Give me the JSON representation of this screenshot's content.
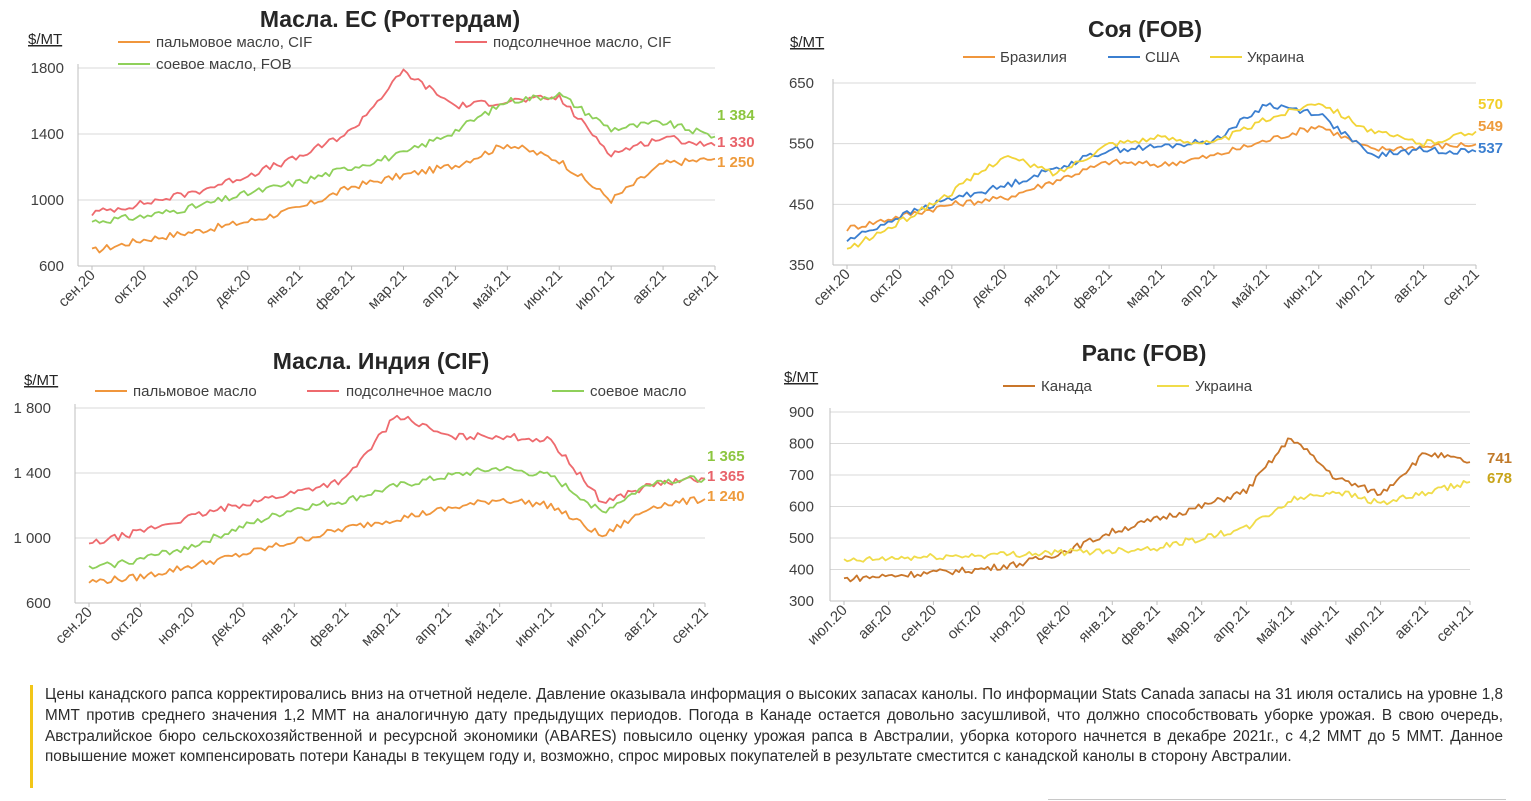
{
  "colors": {
    "orange": "#f0963c",
    "red": "#ee6a6e",
    "green": "#8fd05a",
    "blue": "#3b7fd0",
    "yellow": "#f2d438",
    "canola": "#c9762a",
    "canola_ua": "#f0dc4a",
    "end_green": "#8cc63f",
    "end_red": "#e8636a",
    "end_orange": "#ee9b3c",
    "end_blue": "#3b7fd0",
    "end_yellow": "#f2cf2a",
    "end_canola": "#c07a2a",
    "end_canola_ua": "#c8a41a",
    "grid": "#d9d9d9",
    "axis": "#bfbfbf",
    "note_border": "#f2c618"
  },
  "chart_data": [
    {
      "id": "eu-oils",
      "type": "line",
      "title": "Масла. ЕС (Роттердам)",
      "unit": "$/МТ",
      "ylim": [
        600,
        1800
      ],
      "yticks": [
        "600",
        "1000",
        "1400",
        "1800"
      ],
      "categories": [
        "сен.20",
        "окт.20",
        "ноя.20",
        "дек.20",
        "янв.21",
        "фев.21",
        "мар.21",
        "апр.21",
        "май.21",
        "июн.21",
        "июл.21",
        "авг.21",
        "сен.21"
      ],
      "grid": true,
      "legend": "top",
      "series": [
        {
          "name": "пальмовое масло, CIF",
          "color_key": "orange",
          "values": [
            690,
            760,
            810,
            870,
            950,
            1080,
            1150,
            1210,
            1340,
            1240,
            1000,
            1220,
            1250
          ],
          "end_label": "1 250"
        },
        {
          "name": "подсолнечное масло, CIF",
          "color_key": "red",
          "values": [
            920,
            980,
            1050,
            1150,
            1260,
            1420,
            1780,
            1570,
            1600,
            1620,
            1280,
            1380,
            1330
          ],
          "end_label": "1 330"
        },
        {
          "name": "соевое масло, FOB",
          "color_key": "green",
          "values": [
            870,
            900,
            960,
            1040,
            1110,
            1200,
            1280,
            1420,
            1600,
            1640,
            1430,
            1470,
            1384
          ],
          "end_label": "1 384"
        }
      ]
    },
    {
      "id": "soy",
      "type": "line",
      "title": "Соя (FOB)",
      "unit": "$/МТ",
      "ylim": [
        350,
        650
      ],
      "yticks": [
        "350",
        "450",
        "550",
        "650"
      ],
      "categories": [
        "сен.20",
        "окт.20",
        "ноя.20",
        "дек.20",
        "янв.21",
        "фев.21",
        "мар.21",
        "апр.21",
        "май.21",
        "июн.21",
        "июл.21",
        "авг.21",
        "сен.21"
      ],
      "grid": true,
      "legend": "top",
      "series": [
        {
          "name": "Бразилия",
          "color_key": "orange",
          "values": [
            410,
            430,
            450,
            460,
            490,
            520,
            515,
            530,
            555,
            580,
            540,
            545,
            549
          ],
          "end_label": "549"
        },
        {
          "name": "США",
          "color_key": "blue",
          "values": [
            390,
            430,
            460,
            480,
            510,
            540,
            545,
            555,
            615,
            600,
            530,
            540,
            537
          ],
          "end_label": "537"
        },
        {
          "name": "Украина",
          "color_key": "yellow",
          "values": [
            375,
            420,
            470,
            530,
            500,
            550,
            560,
            550,
            590,
            620,
            570,
            550,
            570
          ],
          "end_label": "570"
        }
      ]
    },
    {
      "id": "india-oils",
      "type": "line",
      "title": "Масла. Индия (CIF)",
      "unit": "$/МТ",
      "ylim": [
        600,
        1800
      ],
      "yticks": [
        "600",
        "1 000",
        "1 400",
        "1 800"
      ],
      "categories": [
        "сен.20",
        "окт.20",
        "ноя.20",
        "дек.20",
        "янв.21",
        "фев.21",
        "мар.21",
        "апр.21",
        "май.21",
        "июн.21",
        "июл.21",
        "авг.21",
        "сен.21"
      ],
      "grid": true,
      "legend": "top",
      "series": [
        {
          "name": "пальмовое масло",
          "color_key": "orange",
          "values": [
            730,
            760,
            830,
            900,
            980,
            1060,
            1120,
            1180,
            1240,
            1200,
            1010,
            1200,
            1240
          ],
          "end_label": "1 240"
        },
        {
          "name": "подсолнечное масло",
          "color_key": "red",
          "values": [
            960,
            1040,
            1130,
            1210,
            1280,
            1360,
            1760,
            1620,
            1630,
            1600,
            1220,
            1330,
            1365
          ],
          "end_label": "1 365"
        },
        {
          "name": "соевое масло",
          "color_key": "green",
          "values": [
            810,
            870,
            950,
            1070,
            1180,
            1230,
            1320,
            1380,
            1430,
            1380,
            1160,
            1350,
            1365
          ],
          "end_label": "1 365"
        }
      ]
    },
    {
      "id": "rapeseed",
      "type": "line",
      "title": "Рапс (FOB)",
      "unit": "$/МТ",
      "ylim": [
        300,
        900
      ],
      "yticks": [
        "300",
        "400",
        "500",
        "600",
        "700",
        "800",
        "900"
      ],
      "categories": [
        "июл.20",
        "авг.20",
        "сен.20",
        "окт.20",
        "ноя.20",
        "дек.20",
        "янв.21",
        "фев.21",
        "мар.21",
        "апр.21",
        "май.21",
        "июн.21",
        "июл.21",
        "авг.21",
        "сен.21"
      ],
      "grid": true,
      "legend": "top",
      "series": [
        {
          "name": "Канада",
          "color_key": "canola",
          "values": [
            370,
            380,
            390,
            400,
            420,
            460,
            520,
            560,
            600,
            650,
            820,
            690,
            640,
            770,
            741
          ],
          "end_label": "741"
        },
        {
          "name": "Украина",
          "color_key": "canola_ua",
          "values": [
            425,
            435,
            440,
            445,
            450,
            455,
            460,
            470,
            500,
            530,
            620,
            650,
            610,
            640,
            678
          ],
          "end_label": "678"
        }
      ]
    }
  ],
  "note": {
    "text": "Цены канадского рапса корректировались вниз на отчетной неделе. Давление оказывала информация о высоких запасах канолы. По информации Stats Canada запасы на 31 июля остались на уровне 1,8 ММТ против среднего значения 1,2 ММТ на аналогичную дату предыдущих периодов. Погода в Канаде остается довольно засушливой, что должно способствовать уборке урожая. В свою очередь, Австралийское бюро сельскохозяйственной и ресурсной экономики (ABARES) повысило оценку урожая рапса в Австралии, уборка которого начнется в декабре 2021г., с 4,2 ММТ до 5 ММТ. Данное повышение может компенсировать потери Канады в текущем году и, возможно, спрос мировых покупателей в результате сместится с канадской канолы в сторону Австралии."
  }
}
